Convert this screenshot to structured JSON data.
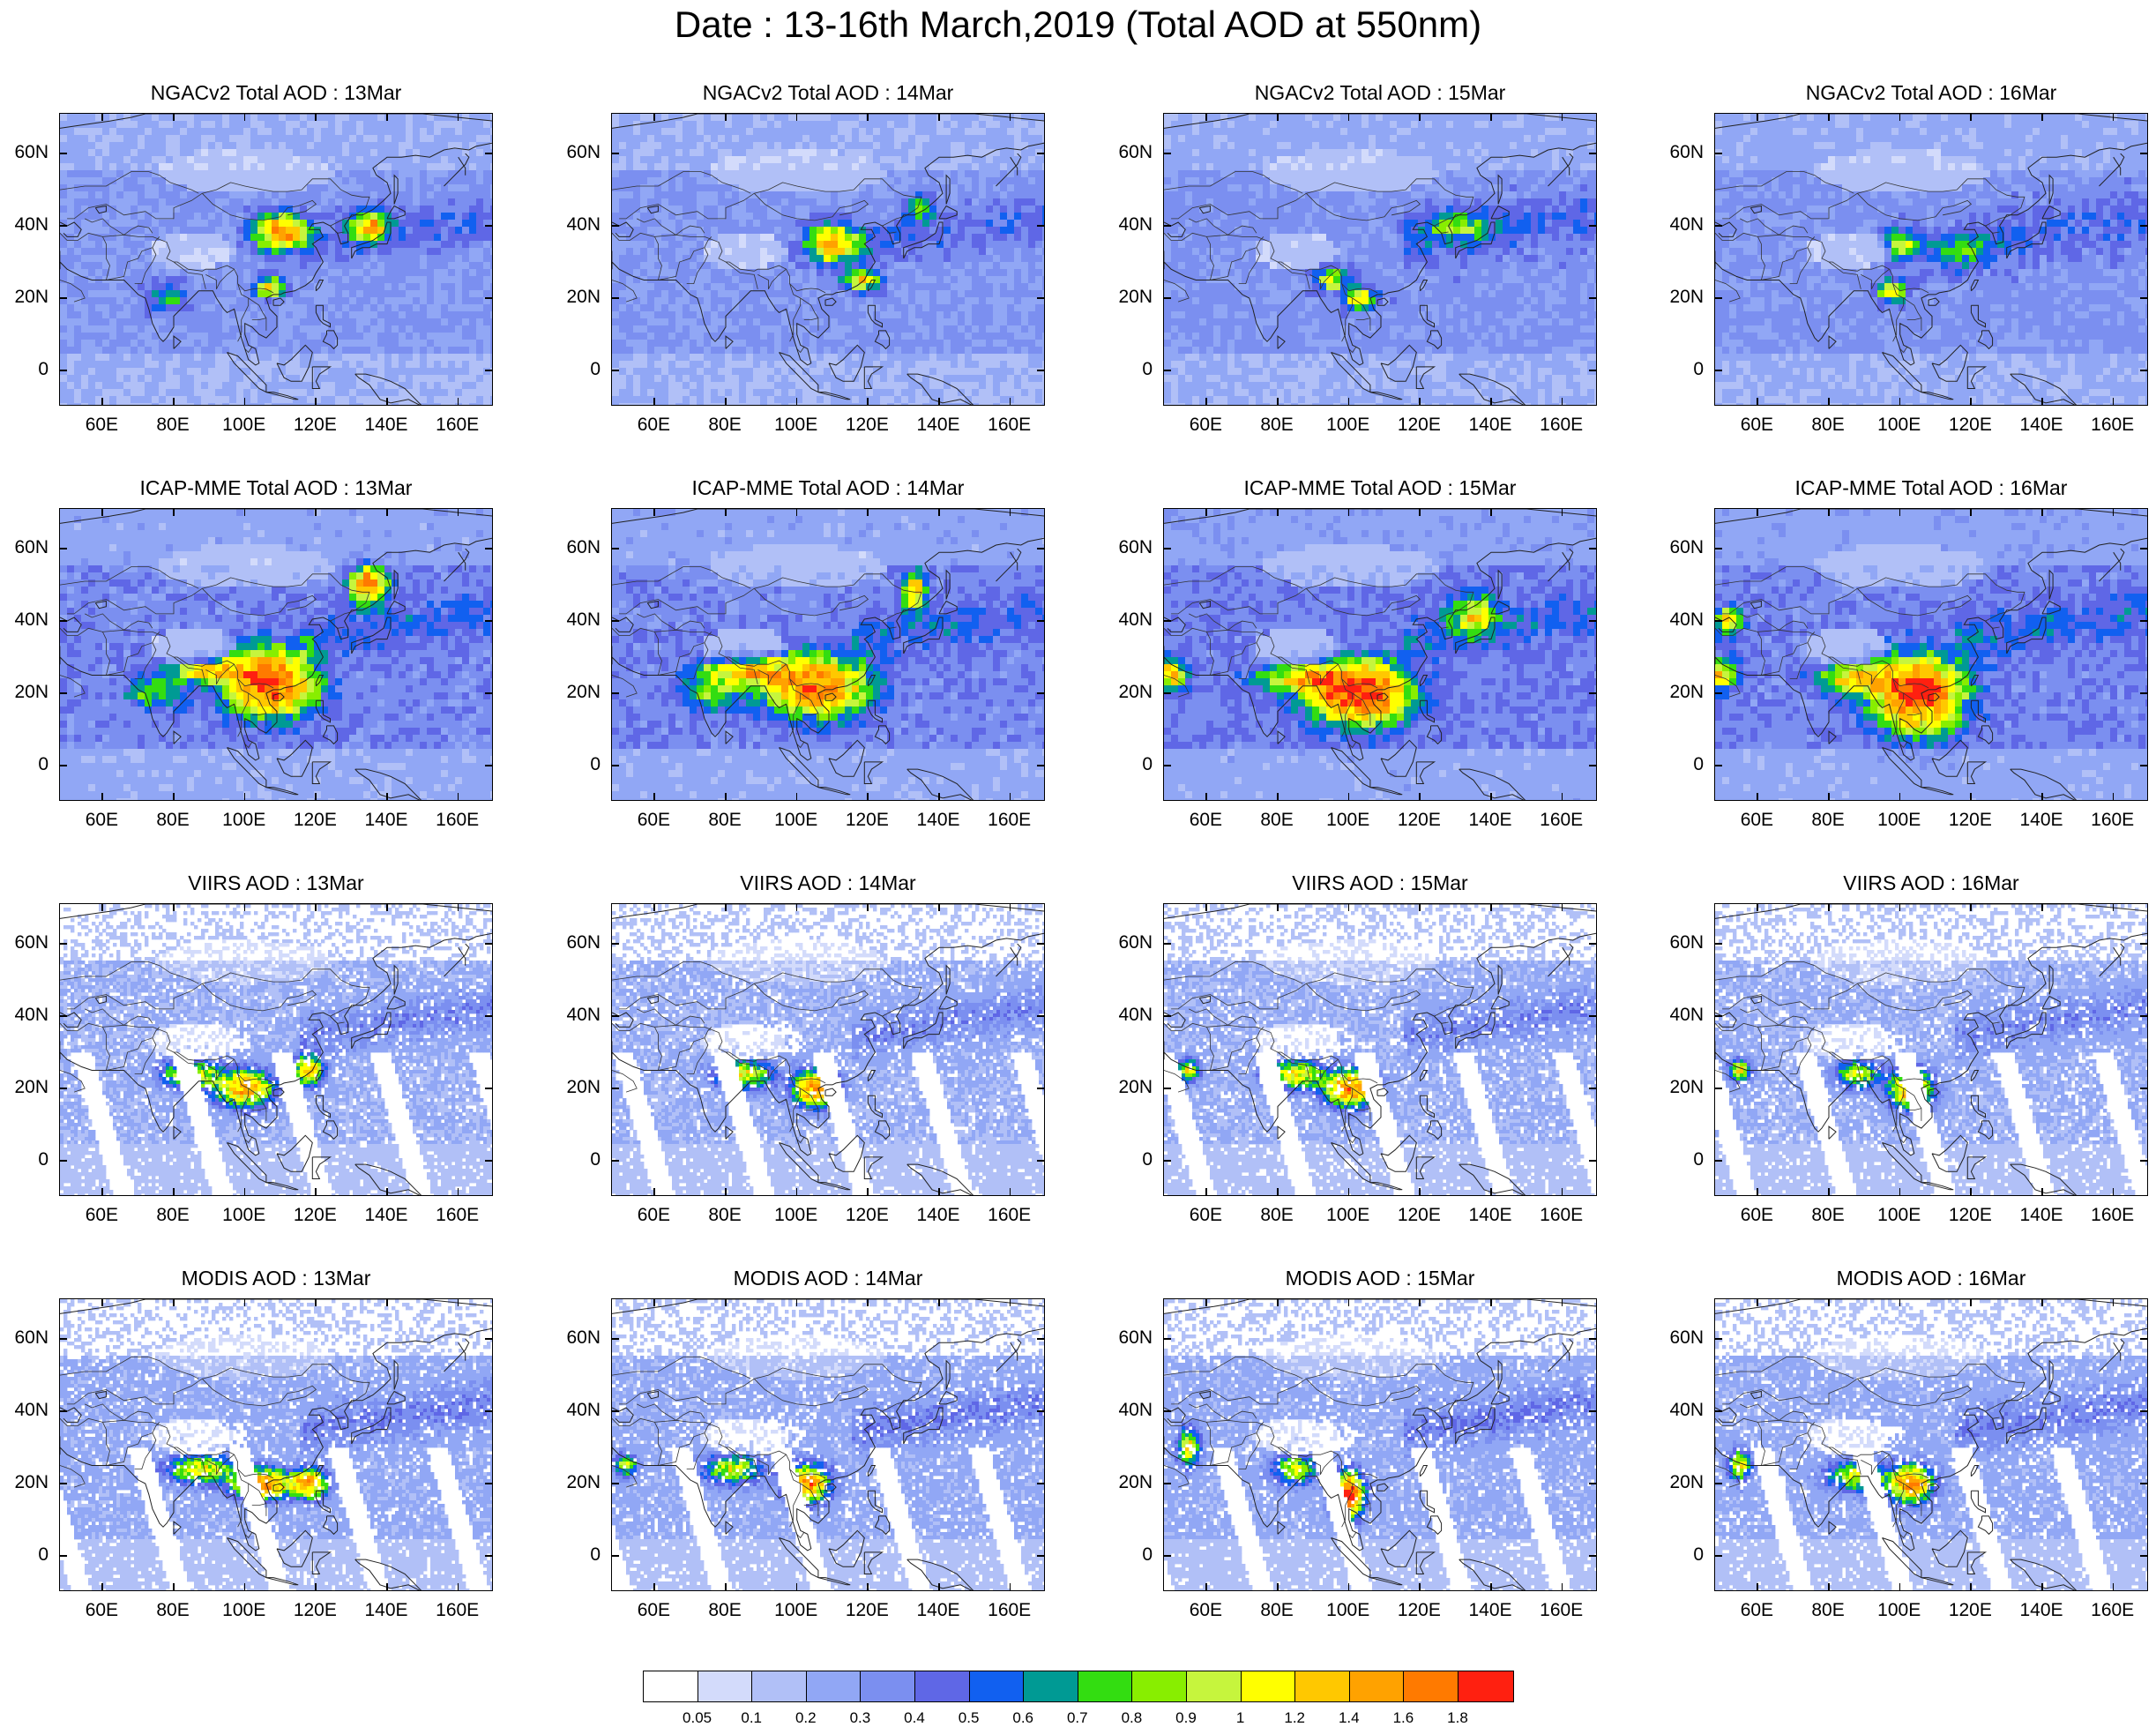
{
  "title": "Date : 13-16th March,2019 (Total AOD at 550nm)",
  "x_ticks": [
    "60E",
    "80E",
    "100E",
    "120E",
    "140E",
    "160E"
  ],
  "y_ticks": [
    "60N",
    "40N",
    "20N",
    "0"
  ],
  "panels": [
    {
      "title": "NGACv2 Total AOD : 13Mar",
      "type": "model",
      "base": 0.3,
      "hot": [
        [
          110,
          38,
          7,
          5,
          1.4
        ],
        [
          135,
          40,
          5,
          4,
          1.2
        ],
        [
          107,
          23,
          4,
          3,
          1.0
        ],
        [
          78,
          20,
          6,
          4,
          0.5
        ]
      ]
    },
    {
      "title": "NGACv2 Total AOD : 14Mar",
      "type": "model",
      "base": 0.3,
      "hot": [
        [
          110,
          35,
          7,
          5,
          1.3
        ],
        [
          118,
          25,
          5,
          3,
          1.1
        ],
        [
          135,
          45,
          4,
          4,
          0.6
        ]
      ]
    },
    {
      "title": "NGACv2 Total AOD : 15Mar",
      "type": "model",
      "base": 0.32,
      "hot": [
        [
          103,
          20,
          4,
          3,
          1.2
        ],
        [
          95,
          25,
          4,
          3,
          0.9
        ],
        [
          130,
          40,
          10,
          4,
          0.55
        ]
      ]
    },
    {
      "title": "NGACv2 Total AOD : 16Mar",
      "type": "model",
      "base": 0.32,
      "hot": [
        [
          100,
          35,
          4,
          4,
          0.9
        ],
        [
          98,
          22,
          4,
          3,
          1.0
        ],
        [
          115,
          33,
          10,
          5,
          0.5
        ]
      ]
    },
    {
      "title": "ICAP-MME Total AOD : 13Mar",
      "type": "model",
      "base": 0.35,
      "hot": [
        [
          107,
          23,
          12,
          9,
          1.6
        ],
        [
          90,
          26,
          10,
          3,
          1.0
        ],
        [
          135,
          50,
          5,
          5,
          1.5
        ],
        [
          75,
          20,
          8,
          5,
          0.6
        ]
      ]
    },
    {
      "title": "ICAP-MME Total AOD : 14Mar",
      "type": "model",
      "base": 0.35,
      "hot": [
        [
          105,
          22,
          14,
          8,
          1.5
        ],
        [
          85,
          26,
          12,
          4,
          1.0
        ],
        [
          133,
          48,
          3,
          5,
          1.2
        ],
        [
          75,
          20,
          8,
          5,
          0.6
        ]
      ]
    },
    {
      "title": "ICAP-MME Total AOD : 15Mar",
      "type": "model",
      "base": 0.37,
      "hot": [
        [
          103,
          20,
          13,
          8,
          1.8
        ],
        [
          88,
          24,
          12,
          4,
          1.0
        ],
        [
          135,
          42,
          6,
          5,
          0.9
        ],
        [
          50,
          25,
          4,
          4,
          1.1
        ]
      ]
    },
    {
      "title": "ICAP-MME Total AOD : 16Mar",
      "type": "model",
      "base": 0.36,
      "hot": [
        [
          105,
          20,
          12,
          10,
          1.7
        ],
        [
          88,
          24,
          10,
          4,
          1.0
        ],
        [
          52,
          40,
          4,
          4,
          0.9
        ],
        [
          50,
          25,
          4,
          4,
          1.1
        ]
      ]
    },
    {
      "title": "VIIRS AOD : 13Mar",
      "type": "sat",
      "base": 0.2,
      "hot": [
        [
          100,
          20,
          8,
          5,
          1.3
        ],
        [
          85,
          24,
          8,
          4,
          1.0
        ],
        [
          118,
          25,
          4,
          4,
          1.2
        ]
      ]
    },
    {
      "title": "VIIRS AOD : 14Mar",
      "type": "sat",
      "base": 0.2,
      "hot": [
        [
          105,
          20,
          6,
          5,
          1.4
        ],
        [
          85,
          24,
          8,
          4,
          1.0
        ]
      ]
    },
    {
      "title": "VIIRS AOD : 15Mar",
      "type": "sat",
      "base": 0.2,
      "hot": [
        [
          100,
          20,
          7,
          5,
          1.4
        ],
        [
          85,
          24,
          8,
          4,
          1.0
        ],
        [
          55,
          25,
          3,
          3,
          1.0
        ]
      ]
    },
    {
      "title": "VIIRS AOD : 16Mar",
      "type": "sat",
      "base": 0.2,
      "hot": [
        [
          103,
          20,
          6,
          5,
          1.4
        ],
        [
          88,
          24,
          6,
          4,
          0.9
        ],
        [
          55,
          25,
          3,
          3,
          1.0
        ]
      ]
    },
    {
      "title": "MODIS AOD : 13Mar",
      "type": "sat",
      "base": 0.22,
      "hot": [
        [
          105,
          20,
          8,
          4,
          1.4
        ],
        [
          88,
          24,
          10,
          4,
          0.9
        ],
        [
          118,
          20,
          5,
          4,
          1.3
        ]
      ]
    },
    {
      "title": "MODIS AOD : 14Mar",
      "type": "sat",
      "base": 0.22,
      "hot": [
        [
          103,
          20,
          6,
          5,
          1.4
        ],
        [
          82,
          24,
          8,
          4,
          0.9
        ],
        [
          52,
          25,
          3,
          3,
          0.9
        ]
      ]
    },
    {
      "title": "MODIS AOD : 15Mar",
      "type": "sat",
      "base": 0.22,
      "hot": [
        [
          100,
          17,
          4,
          6,
          1.8
        ],
        [
          85,
          24,
          6,
          4,
          0.9
        ],
        [
          55,
          30,
          3,
          5,
          1.0
        ]
      ]
    },
    {
      "title": "MODIS AOD : 16Mar",
      "type": "sat",
      "base": 0.22,
      "hot": [
        [
          103,
          20,
          6,
          5,
          1.4
        ],
        [
          88,
          22,
          8,
          4,
          0.9
        ],
        [
          55,
          25,
          3,
          4,
          1.0
        ]
      ]
    }
  ],
  "colorbar": {
    "labels": [
      "0.05",
      "0.1",
      "0.2",
      "0.3",
      "0.4",
      "0.5",
      "0.6",
      "0.7",
      "0.8",
      "0.9",
      "1",
      "1.2",
      "1.4",
      "1.6",
      "1.8"
    ],
    "colors": [
      "#ffffff",
      "#d3dbfb",
      "#b1c0f7",
      "#91a7f5",
      "#7b8ff0",
      "#5f67e6",
      "#1160f0",
      "#009a94",
      "#33dd11",
      "#88ee00",
      "#c6f53d",
      "#ffff00",
      "#ffc800",
      "#ffa200",
      "#ff7a00",
      "#ff2010"
    ]
  }
}
